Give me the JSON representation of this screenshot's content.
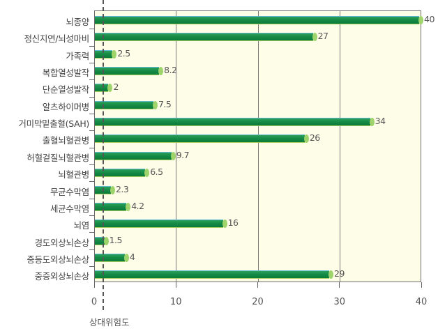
{
  "chart_data": {
    "type": "bar",
    "orientation": "horizontal",
    "title": "",
    "xlabel": "상대위험도",
    "ylabel": "",
    "xlim": [
      0,
      40
    ],
    "xticks": [
      0,
      10,
      20,
      30,
      40
    ],
    "reference_line": 1,
    "grid": true,
    "categories": [
      "뇌종양",
      "정신지연/뇌성마비",
      "가족력",
      "복합열성발작",
      "단순열성발작",
      "알츠하이머병",
      "거미막밑출혈(SAH)",
      "출혈뇌혈관병",
      "허혈겉질뇌혈관병",
      "뇌혈관병",
      "무균수막염",
      "세균수막염",
      "뇌염",
      "경도외상뇌손상",
      "중등도외상뇌손상",
      "중증외상뇌손상"
    ],
    "values": [
      40,
      27,
      2.5,
      8.2,
      2,
      7.5,
      34,
      26,
      9.7,
      6.5,
      2.3,
      4.2,
      16,
      1.5,
      4,
      29
    ],
    "value_labels": [
      "40",
      "27",
      "2.5",
      "8.2",
      "2",
      "7.5",
      "34",
      "26",
      "9.7",
      "6.5",
      "2.3",
      "4.2",
      "16",
      "1.5",
      "4",
      "29"
    ]
  },
  "colors": {
    "bar": "#148a45",
    "bar_cap": "#9fd36c",
    "plot_background": "#fdfde8",
    "grid": "#777777"
  }
}
